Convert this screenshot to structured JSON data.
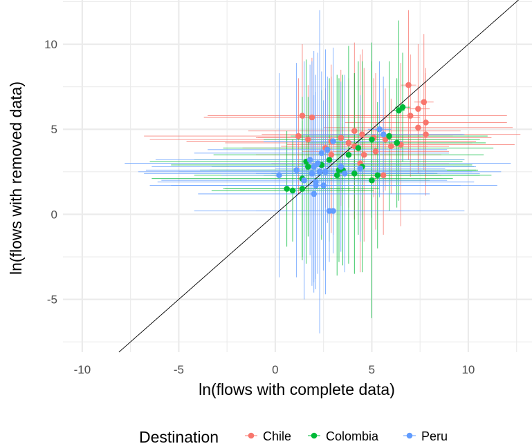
{
  "chart_data": {
    "type": "scatter",
    "xlabel": "ln(flows with complete data)",
    "ylabel": "ln(flows with removed data)",
    "xlim": [
      -11.0,
      13.3
    ],
    "ylim": [
      -8.1,
      12.6
    ],
    "x_ticks": [
      -10,
      -5,
      0,
      5,
      10
    ],
    "y_ticks": [
      -5,
      0,
      5,
      10
    ],
    "grid": true,
    "reference_line": {
      "type": "identity",
      "slope": 1,
      "intercept": 0,
      "color": "#000000"
    },
    "legend": {
      "title": "Destination",
      "position": "bottom"
    },
    "colors": {
      "Chile": "#F8766D",
      "Colombia": "#00BA38",
      "Peru": "#619CFF"
    },
    "series": [
      {
        "name": "Chile",
        "points": [
          {
            "x": 6.9,
            "y": 7.6,
            "xerr": 0.4,
            "yerr": 4.4
          },
          {
            "x": 7.7,
            "y": 6.6,
            "xerr": 0.5,
            "yerr": 4.0
          },
          {
            "x": 7.4,
            "y": 6.2,
            "xerr": 0.6,
            "yerr": 3.8
          },
          {
            "x": 7.0,
            "y": 5.8,
            "xerr": 5.0,
            "yerr": 3.6
          },
          {
            "x": 1.4,
            "y": 5.8,
            "xerr": 4.9,
            "yerr": 4.2
          },
          {
            "x": 1.9,
            "y": 5.7,
            "xerr": 5.6,
            "yerr": 3.5
          },
          {
            "x": 7.8,
            "y": 5.4,
            "xerr": 4.2,
            "yerr": 3.2
          },
          {
            "x": 7.4,
            "y": 5.1,
            "xerr": 4.9,
            "yerr": 2.5
          },
          {
            "x": 4.1,
            "y": 4.9,
            "xerr": 5.5,
            "yerr": 5.2
          },
          {
            "x": 4.5,
            "y": 4.7,
            "xerr": 5.2,
            "yerr": 5.0
          },
          {
            "x": 7.8,
            "y": 4.7,
            "xerr": 4.9,
            "yerr": 3.6
          },
          {
            "x": 5.1,
            "y": 4.5,
            "xerr": 6.1,
            "yerr": 3.5
          },
          {
            "x": 1.2,
            "y": 4.6,
            "xerr": 8.0,
            "yerr": 3.4
          },
          {
            "x": 1.7,
            "y": 4.4,
            "xerr": 8.2,
            "yerr": 3.2
          },
          {
            "x": 2.9,
            "y": 4.3,
            "xerr": 7.5,
            "yerr": 4.5
          },
          {
            "x": 3.8,
            "y": 4.2,
            "xerr": 6.4,
            "yerr": 3.8
          },
          {
            "x": 6.5,
            "y": 4.1,
            "xerr": 5.9,
            "yerr": 4.8
          },
          {
            "x": 5.7,
            "y": 4.4,
            "xerr": 4.4,
            "yerr": 3.0
          },
          {
            "x": 4.1,
            "y": 4.0,
            "xerr": 3.8,
            "yerr": 4.3
          },
          {
            "x": 3.4,
            "y": 4.5,
            "xerr": 4.3,
            "yerr": 4.0
          },
          {
            "x": 6.0,
            "y": 4.0,
            "xerr": 3.0,
            "yerr": 2.8
          },
          {
            "x": 5.2,
            "y": 3.7,
            "xerr": 3.8,
            "yerr": 4.6
          },
          {
            "x": 2.6,
            "y": 3.9,
            "xerr": 4.3,
            "yerr": 3.5
          },
          {
            "x": 4.6,
            "y": 3.5,
            "xerr": 4.0,
            "yerr": 5.1
          },
          {
            "x": 2.9,
            "y": 3.5,
            "xerr": 3.9,
            "yerr": 4.6
          },
          {
            "x": 4.4,
            "y": 3.0,
            "xerr": 4.6,
            "yerr": 6.4
          },
          {
            "x": 5.6,
            "y": 2.3,
            "xerr": 3.0,
            "yerr": 3.5
          }
        ]
      },
      {
        "name": "Colombia",
        "points": [
          {
            "x": 6.6,
            "y": 6.3,
            "xerr": 0.4,
            "yerr": 3.2
          },
          {
            "x": 6.4,
            "y": 6.1,
            "xerr": 0.3,
            "yerr": 5.3
          },
          {
            "x": 5.9,
            "y": 4.6,
            "xerr": 5.1,
            "yerr": 4.4
          },
          {
            "x": 5.0,
            "y": 4.4,
            "xerr": 5.6,
            "yerr": 4.6
          },
          {
            "x": 6.3,
            "y": 4.2,
            "xerr": 4.6,
            "yerr": 3.8
          },
          {
            "x": 4.3,
            "y": 3.9,
            "xerr": 7.0,
            "yerr": 5.1
          },
          {
            "x": 3.8,
            "y": 3.5,
            "xerr": 7.0,
            "yerr": 6.4
          },
          {
            "x": 2.8,
            "y": 3.2,
            "xerr": 7.0,
            "yerr": 4.8
          },
          {
            "x": 1.6,
            "y": 3.1,
            "xerr": 8.1,
            "yerr": 6.0
          },
          {
            "x": 1.7,
            "y": 2.8,
            "xerr": 5.0,
            "yerr": 4.1
          },
          {
            "x": 2.4,
            "y": 2.9,
            "xerr": 7.8,
            "yerr": 4.4
          },
          {
            "x": 3.3,
            "y": 2.6,
            "xerr": 7.2,
            "yerr": 5.4
          },
          {
            "x": 3.5,
            "y": 2.6,
            "xerr": 6.9,
            "yerr": 5.6
          },
          {
            "x": 4.5,
            "y": 2.8,
            "xerr": 5.8,
            "yerr": 6.2
          },
          {
            "x": 3.2,
            "y": 2.3,
            "xerr": 7.4,
            "yerr": 5.9
          },
          {
            "x": 5.3,
            "y": 2.3,
            "xerr": 5.9,
            "yerr": 4.3
          },
          {
            "x": 1.4,
            "y": 2.1,
            "xerr": 7.8,
            "yerr": 4.8
          },
          {
            "x": 5.0,
            "y": 2.0,
            "xerr": 3.0,
            "yerr": 8.1
          },
          {
            "x": 4.1,
            "y": 2.4,
            "xerr": 4.3,
            "yerr": 5.9
          },
          {
            "x": 1.4,
            "y": 1.5,
            "xerr": 4.0,
            "yerr": 4.0
          },
          {
            "x": 0.6,
            "y": 1.5,
            "xerr": 3.3,
            "yerr": 3.4
          },
          {
            "x": 0.9,
            "y": 1.4,
            "xerr": 4.2,
            "yerr": 3.0
          }
        ]
      },
      {
        "name": "Peru",
        "points": [
          {
            "x": 5.4,
            "y": 5.0,
            "xerr": 0.6,
            "yerr": 4.0
          },
          {
            "x": 5.6,
            "y": 4.7,
            "xerr": 4.2,
            "yerr": 3.4
          },
          {
            "x": 3.0,
            "y": 4.3,
            "xerr": 3.6,
            "yerr": 5.5
          },
          {
            "x": 2.7,
            "y": 3.8,
            "xerr": 6.2,
            "yerr": 4.3
          },
          {
            "x": 2.4,
            "y": 3.6,
            "xerr": 6.6,
            "yerr": 4.8
          },
          {
            "x": 1.8,
            "y": 3.2,
            "xerr": 8.0,
            "yerr": 5.6
          },
          {
            "x": 2.2,
            "y": 3.0,
            "xerr": 10.0,
            "yerr": 6.5
          },
          {
            "x": 2.0,
            "y": 2.8,
            "xerr": 8.4,
            "yerr": 6.8
          },
          {
            "x": 2.3,
            "y": 2.5,
            "xerr": 9.4,
            "yerr": 9.5
          },
          {
            "x": 1.1,
            "y": 2.6,
            "xerr": 7.8,
            "yerr": 6.3
          },
          {
            "x": 1.9,
            "y": 2.4,
            "xerr": 8.7,
            "yerr": 6.6
          },
          {
            "x": 2.6,
            "y": 2.5,
            "xerr": 7.6,
            "yerr": 7.2
          },
          {
            "x": 3.4,
            "y": 2.8,
            "xerr": 5.8,
            "yerr": 5.0
          },
          {
            "x": 3.6,
            "y": 2.4,
            "xerr": 4.6,
            "yerr": 5.8
          },
          {
            "x": 4.4,
            "y": 2.7,
            "xerr": 4.4,
            "yerr": 4.3
          },
          {
            "x": 1.5,
            "y": 2.0,
            "xerr": 7.4,
            "yerr": 7.0
          },
          {
            "x": 2.1,
            "y": 1.9,
            "xerr": 8.2,
            "yerr": 6.3
          },
          {
            "x": 0.2,
            "y": 2.3,
            "xerr": 3.0,
            "yerr": 6.0
          },
          {
            "x": 2.1,
            "y": 1.7,
            "xerr": 7.5,
            "yerr": 5.5
          },
          {
            "x": 2.5,
            "y": 1.7,
            "xerr": 9.0,
            "yerr": 5.0
          },
          {
            "x": 2.0,
            "y": 1.2,
            "xerr": 6.0,
            "yerr": 5.8
          },
          {
            "x": 2.8,
            "y": 0.2,
            "xerr": 7.0,
            "yerr": 3.0
          },
          {
            "x": 3.0,
            "y": 0.2,
            "xerr": 4.0,
            "yerr": 2.5
          }
        ]
      }
    ]
  }
}
